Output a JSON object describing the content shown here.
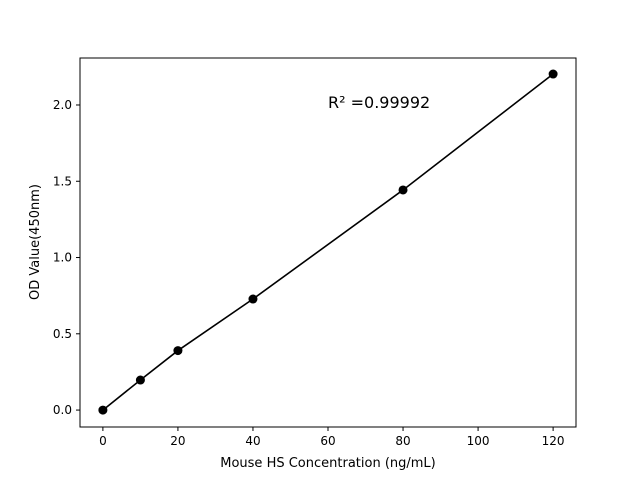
{
  "chart_data": {
    "type": "line",
    "title": "",
    "xlabel": "Mouse HS Concentration (ng/mL)",
    "ylabel": "OD Value(450nm)",
    "annotation": "R² =0.99992",
    "x": [
      0,
      10,
      20,
      40,
      80,
      120
    ],
    "y": [
      0.0,
      0.197,
      0.39,
      0.728,
      1.443,
      2.203
    ],
    "xlim": [
      -6.1,
      126.1
    ],
    "ylim": [
      -0.111,
      2.308
    ],
    "xticks": [
      0,
      20,
      40,
      60,
      80,
      100,
      120
    ],
    "xtick_labels": [
      "0",
      "20",
      "40",
      "60",
      "80",
      "100",
      "120"
    ],
    "yticks": [
      0.0,
      0.5,
      1.0,
      1.5,
      2.0
    ],
    "ytick_labels": [
      "0.0",
      "0.5",
      "1.0",
      "1.5",
      "2.0"
    ],
    "grid": false,
    "color": "#000000",
    "marker": "circle"
  }
}
